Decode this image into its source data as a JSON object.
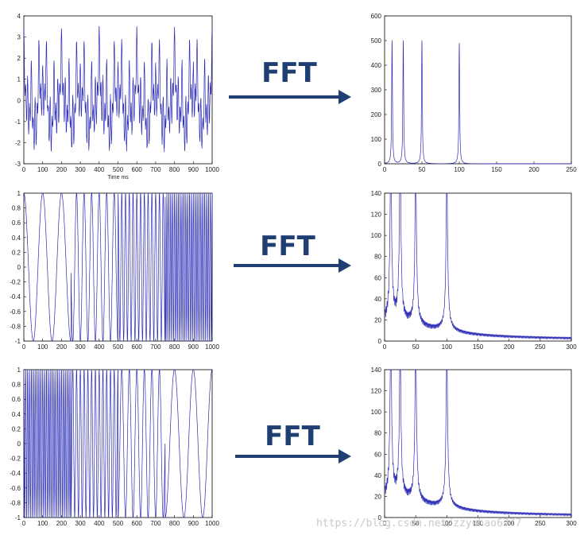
{
  "arrow_label": "FFT",
  "watermark": "https://blog.csdn.net/zzyuhao6777",
  "colors": {
    "line": "#2b2bb5",
    "arrow": "#1f3f73",
    "frame": "#000000"
  },
  "chart_data": [
    {
      "type": "line",
      "id": "signal-1",
      "title": "",
      "xlabel": "Time ms",
      "ylabel": "",
      "xlim": [
        0,
        1000
      ],
      "ylim": [
        -3,
        4
      ],
      "xticks": [
        0,
        100,
        200,
        300,
        400,
        500,
        600,
        700,
        800,
        900,
        1000
      ],
      "yticks": [
        -3,
        -2,
        -1,
        0,
        1,
        2,
        3,
        4
      ],
      "grid": false,
      "series": [
        {
          "name": "",
          "signal": "sum of sinusoids at 10, 25, 50 and 100 Hz"
        }
      ]
    },
    {
      "type": "line",
      "id": "spectrum-1",
      "title": "",
      "xlabel": "",
      "ylabel": "",
      "xlim": [
        0,
        250
      ],
      "ylim": [
        0,
        600
      ],
      "xticks": [
        0,
        50,
        100,
        150,
        200,
        250
      ],
      "yticks": [
        0,
        100,
        200,
        300,
        400,
        500,
        600
      ],
      "grid": false,
      "series": [
        {
          "name": "",
          "peaks": [
            {
              "x": 10,
              "y": 500
            },
            {
              "x": 25,
              "y": 500
            },
            {
              "x": 50,
              "y": 500
            },
            {
              "x": 100,
              "y": 490
            }
          ]
        }
      ]
    },
    {
      "type": "line",
      "id": "signal-2",
      "title": "",
      "xlabel": "",
      "ylabel": "",
      "xlim": [
        0,
        1000
      ],
      "ylim": [
        -1,
        1
      ],
      "xticks": [
        0,
        100,
        200,
        300,
        400,
        500,
        600,
        700,
        800,
        900,
        1000
      ],
      "yticks": [
        -1,
        -0.8,
        -0.6,
        -0.4,
        -0.2,
        0,
        0.2,
        0.4,
        0.6,
        0.8,
        1
      ],
      "grid": false,
      "series": [
        {
          "name": "",
          "segments": [
            {
              "from": 0,
              "to": 250,
              "freq": 10
            },
            {
              "from": 250,
              "to": 500,
              "freq": 25
            },
            {
              "from": 500,
              "to": 750,
              "freq": 50
            },
            {
              "from": 750,
              "to": 1000,
              "freq": 100
            }
          ]
        }
      ]
    },
    {
      "type": "line",
      "id": "spectrum-2",
      "title": "",
      "xlabel": "",
      "ylabel": "",
      "xlim": [
        0,
        300
      ],
      "ylim": [
        0,
        140
      ],
      "xticks": [
        0,
        50,
        100,
        150,
        200,
        250,
        300
      ],
      "yticks": [
        0,
        20,
        40,
        60,
        80,
        100,
        120,
        140
      ],
      "grid": false,
      "series": [
        {
          "name": "",
          "peaks": [
            {
              "x": 10,
              "y": 135
            },
            {
              "x": 25,
              "y": 136
            },
            {
              "x": 50,
              "y": 123
            },
            {
              "x": 100,
              "y": 122
            }
          ]
        }
      ]
    },
    {
      "type": "line",
      "id": "signal-3",
      "title": "",
      "xlabel": "",
      "ylabel": "",
      "xlim": [
        0,
        1000
      ],
      "ylim": [
        -1,
        1
      ],
      "xticks": [
        0,
        100,
        200,
        300,
        400,
        500,
        600,
        700,
        800,
        900,
        1000
      ],
      "yticks": [
        -1,
        -0.8,
        -0.6,
        -0.4,
        -0.2,
        0,
        0.2,
        0.4,
        0.6,
        0.8,
        1
      ],
      "grid": false,
      "series": [
        {
          "name": "",
          "segments": [
            {
              "from": 0,
              "to": 250,
              "freq": 100
            },
            {
              "from": 250,
              "to": 500,
              "freq": 50
            },
            {
              "from": 500,
              "to": 750,
              "freq": 25
            },
            {
              "from": 750,
              "to": 1000,
              "freq": 10
            }
          ]
        }
      ]
    },
    {
      "type": "line",
      "id": "spectrum-3",
      "title": "",
      "xlabel": "",
      "ylabel": "",
      "xlim": [
        0,
        300
      ],
      "ylim": [
        0,
        140
      ],
      "xticks": [
        0,
        50,
        100,
        150,
        200,
        250,
        300
      ],
      "yticks": [
        0,
        20,
        40,
        60,
        80,
        100,
        120,
        140
      ],
      "grid": false,
      "series": [
        {
          "name": "",
          "peaks": [
            {
              "x": 10,
              "y": 134
            },
            {
              "x": 25,
              "y": 116
            },
            {
              "x": 50,
              "y": 124
            },
            {
              "x": 100,
              "y": 122
            }
          ]
        }
      ]
    }
  ]
}
